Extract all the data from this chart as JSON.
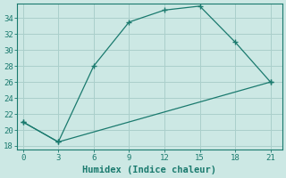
{
  "xlabel": "Humidex (Indice chaleur)",
  "background_color": "#cce8e4",
  "grid_color": "#aacfcb",
  "line_color": "#1a7a6e",
  "line1_x": [
    0,
    3,
    6,
    9,
    12,
    15,
    18,
    21
  ],
  "line1_y": [
    21,
    18.5,
    28,
    33.5,
    35,
    35.5,
    31,
    26
  ],
  "line2_x": [
    0,
    3,
    21
  ],
  "line2_y": [
    21,
    18.5,
    26
  ],
  "ylim": [
    17.5,
    35.8
  ],
  "xlim": [
    -0.5,
    22
  ],
  "xticks": [
    0,
    3,
    6,
    9,
    12,
    15,
    18,
    21
  ],
  "yticks": [
    18,
    20,
    22,
    24,
    26,
    28,
    30,
    32,
    34
  ],
  "font_color": "#1a7a6e",
  "font_size_tick": 6.5,
  "font_size_xlabel": 7.5
}
